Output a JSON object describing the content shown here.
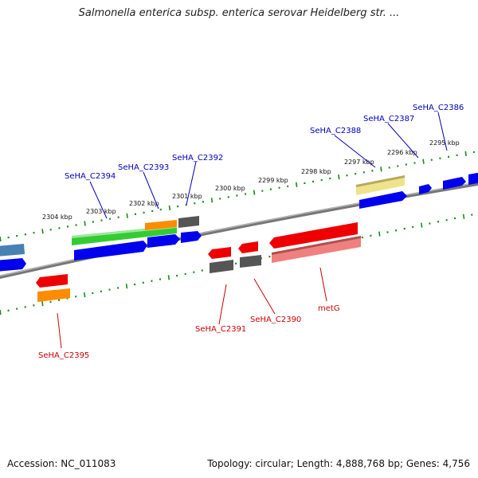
{
  "title": "Salmonella enterica subsp. enterica serovar Heidelberg str. ...",
  "footer": {
    "accession": "Accession: NC_011083",
    "summary": "Topology: circular; Length: 4,888,768 bp; Genes: 4,756"
  },
  "colors": {
    "backbone": "#808080",
    "tick": "#1a8a1a",
    "plus_label": "#0000bb",
    "minus_label": "#cc0000",
    "blue": "#0000ee",
    "green": "#33cc33",
    "orange": "#ff8c00",
    "gray": "#555555",
    "red": "#ee0000",
    "pink": "#f08080",
    "khaki": "#eee38a",
    "steel": "#4682b4"
  },
  "ruler": {
    "unit": "kbp",
    "labels": [
      {
        "kbp": 2304,
        "text": "2304 kbp"
      },
      {
        "kbp": 2303,
        "text": "2303 kbp"
      },
      {
        "kbp": 2302,
        "text": "2302 kbp"
      },
      {
        "kbp": 2301,
        "text": "2301 kbp"
      },
      {
        "kbp": 2300,
        "text": "2300 kbp"
      },
      {
        "kbp": 2299,
        "text": "2299 kbp"
      },
      {
        "kbp": 2298,
        "text": "2298 kbp"
      },
      {
        "kbp": 2297,
        "text": "2297 kbp"
      },
      {
        "kbp": 2296,
        "text": "2296 kbp"
      },
      {
        "kbp": 2295,
        "text": "2295 kbp"
      }
    ]
  },
  "genes_plus": [
    {
      "name": "SeHA_C2394",
      "label": "SeHA_C2394"
    },
    {
      "name": "SeHA_C2393",
      "label": "SeHA_C2393"
    },
    {
      "name": "SeHA_C2392",
      "label": "SeHA_C2392"
    },
    {
      "name": "SeHA_C2388",
      "label": "SeHA_C2388"
    },
    {
      "name": "SeHA_C2387",
      "label": "SeHA_C2387"
    },
    {
      "name": "SeHA_C2386",
      "label": "SeHA_C2386"
    }
  ],
  "genes_minus": [
    {
      "name": "SeHA_C2395",
      "label": "SeHA_C2395"
    },
    {
      "name": "SeHA_C2391",
      "label": "SeHA_C2391"
    },
    {
      "name": "SeHA_C2390",
      "label": "SeHA_C2390"
    },
    {
      "name": "metG",
      "label": "metG"
    }
  ]
}
